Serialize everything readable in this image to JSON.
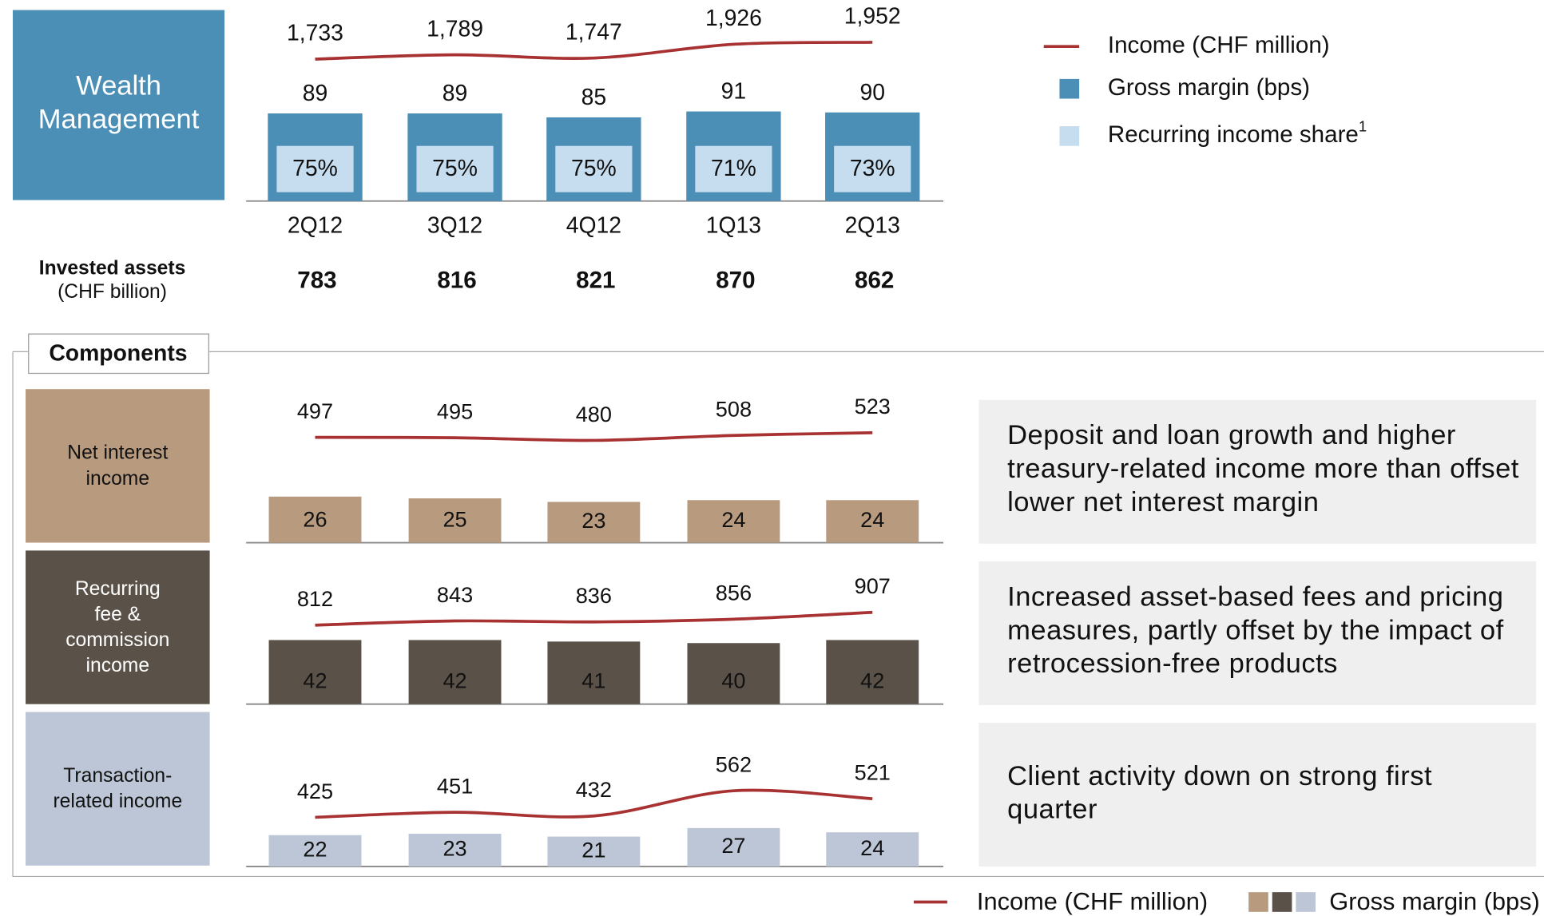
{
  "chart_data": [
    {
      "type": "combo",
      "title": "Wealth Management",
      "categories": [
        "2Q12",
        "3Q12",
        "4Q12",
        "1Q13",
        "2Q13"
      ],
      "series": [
        {
          "name": "Income (CHF million)",
          "type": "line",
          "color": "#a83232",
          "values": [
            1733,
            1789,
            1747,
            1926,
            1952
          ],
          "value_labels": [
            "1,733",
            "1,789",
            "1,747",
            "1,926",
            "1,952"
          ]
        },
        {
          "name": "Gross margin (bps)",
          "type": "bar",
          "color": "#4b8fb6",
          "values": [
            89,
            89,
            85,
            91,
            90
          ]
        },
        {
          "name": "Recurring income share",
          "note_mark": "1",
          "type": "share",
          "color": "#c6ddef",
          "values": [
            75,
            75,
            75,
            71,
            73
          ],
          "value_labels": [
            "75%",
            "75%",
            "75%",
            "71%",
            "73%"
          ]
        }
      ]
    },
    {
      "type": "combo",
      "title": "Net interest income",
      "comment": "Deposit and loan growth and higher treasury-related income more than offset lower net interest margin",
      "series": [
        {
          "name": "Income (CHF million)",
          "type": "line",
          "color": "#a83232",
          "values": [
            497,
            495,
            480,
            508,
            523
          ]
        },
        {
          "name": "Gross margin (bps)",
          "type": "bar",
          "color": "#b89b7f",
          "values": [
            26,
            25,
            23,
            24,
            24
          ]
        }
      ]
    },
    {
      "type": "combo",
      "title": "Recurring fee & commission income",
      "comment": "Increased asset-based fees and pricing measures, partly offset by the impact of retrocession-free products",
      "series": [
        {
          "name": "Income (CHF million)",
          "type": "line",
          "color": "#a83232",
          "values": [
            812,
            843,
            836,
            856,
            907
          ]
        },
        {
          "name": "Gross margin (bps)",
          "type": "bar",
          "color": "#5a5148",
          "values": [
            42,
            42,
            41,
            40,
            42
          ]
        }
      ]
    },
    {
      "type": "combo",
      "title": "Transaction-related income",
      "comment": "Client activity down on strong first quarter",
      "series": [
        {
          "name": "Income (CHF million)",
          "type": "line",
          "color": "#a83232",
          "values": [
            425,
            451,
            432,
            562,
            521
          ]
        },
        {
          "name": "Gross margin (bps)",
          "type": "bar",
          "color": "#bcc6d6",
          "values": [
            22,
            23,
            21,
            27,
            24
          ]
        }
      ]
    }
  ],
  "invested_assets": {
    "label": "Invested assets",
    "unit": "(CHF billion)",
    "values": [
      783,
      816,
      821,
      870,
      862
    ]
  },
  "components_title": "Components"
}
